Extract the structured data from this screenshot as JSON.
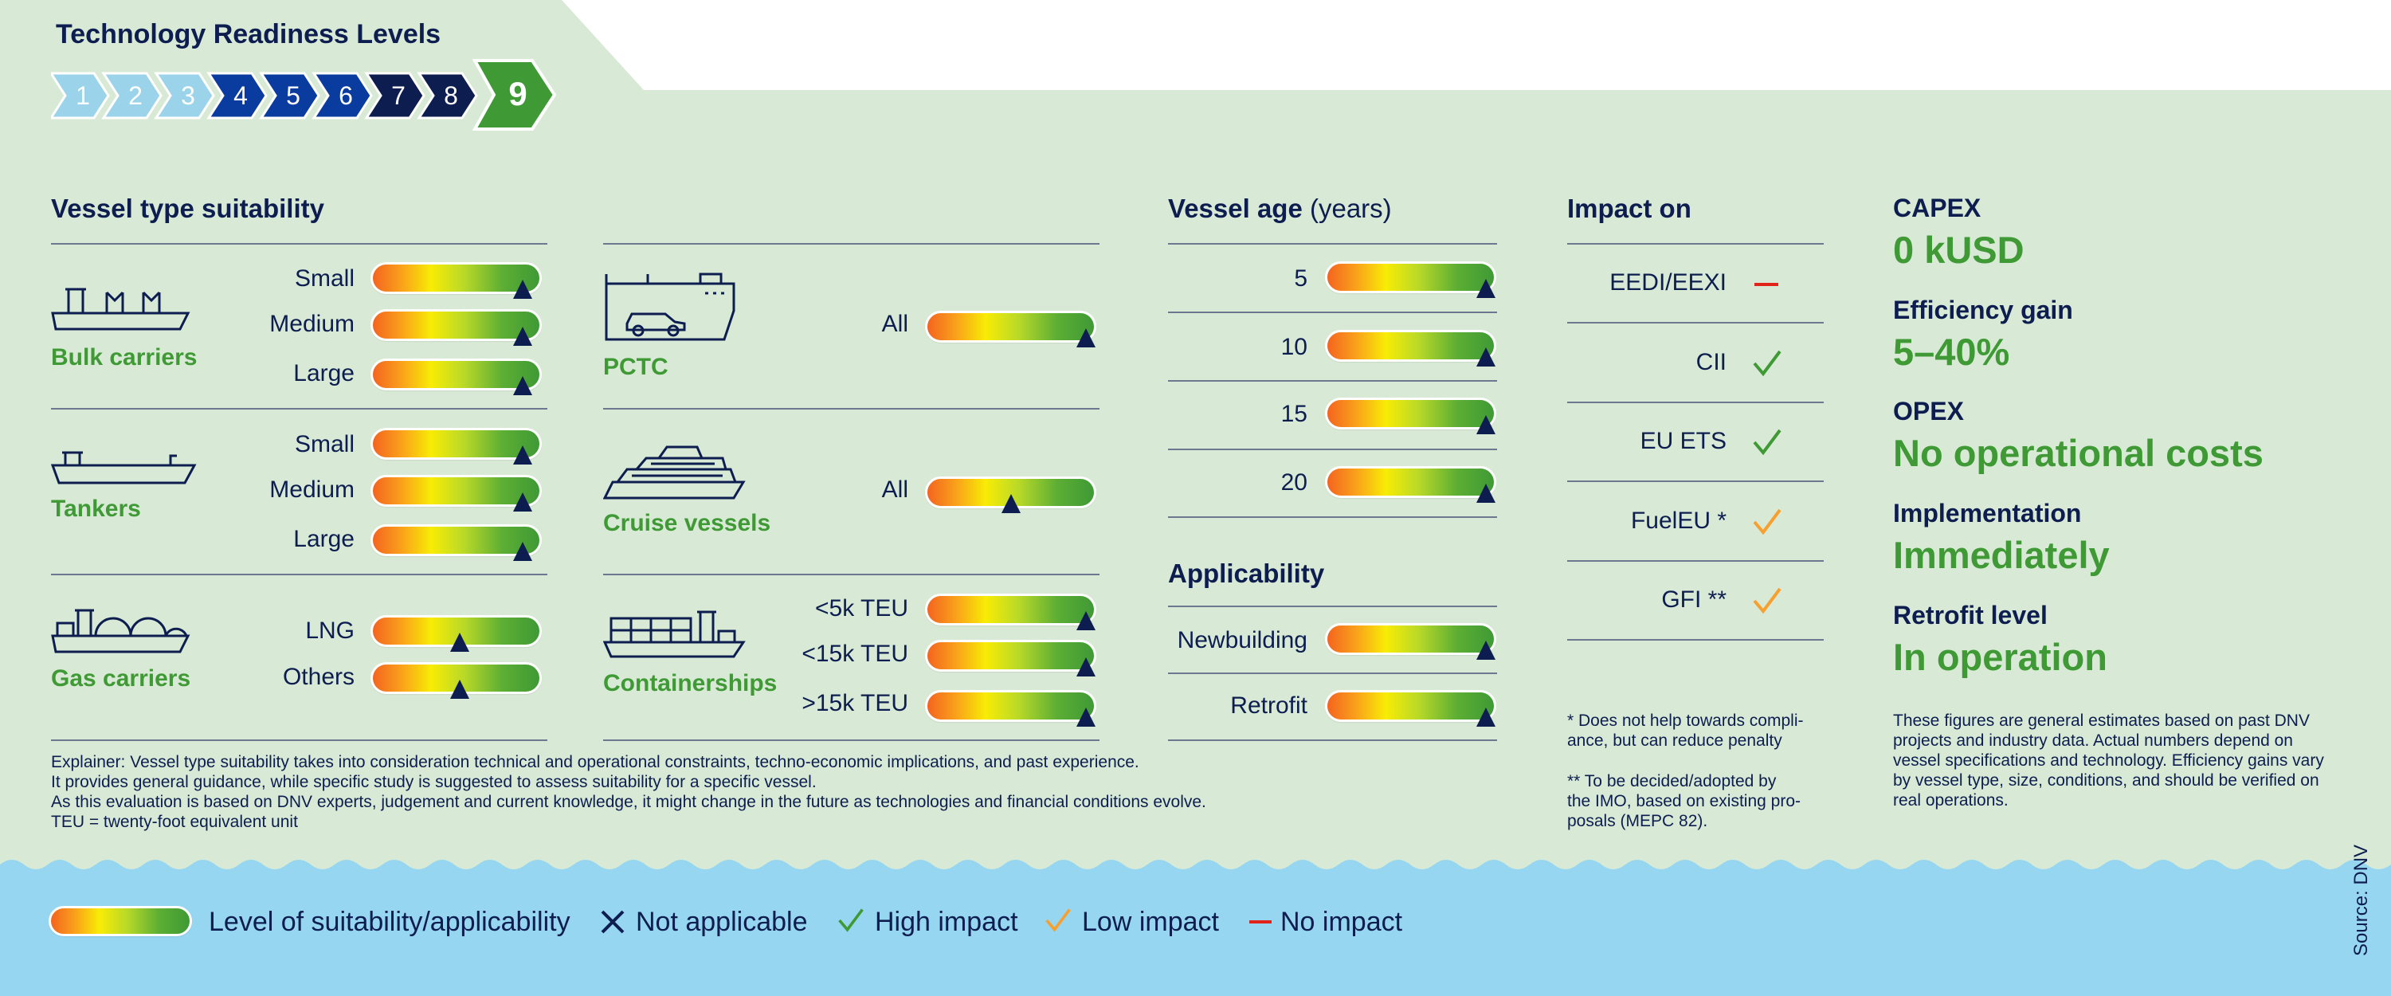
{
  "trl": {
    "title": "Technology Readiness Levels",
    "levels": [
      "1",
      "2",
      "3",
      "4",
      "5",
      "6",
      "7",
      "8",
      "9"
    ],
    "current": "9"
  },
  "colors": {
    "panel_bg": "#d8ead6",
    "navy": "#0e1d4f",
    "green": "#3f9a35",
    "light_blue": "#9bd4ea",
    "mid_blue": "#0a3ca0",
    "no_impact_red": "#e2231a",
    "low_impact_orange": "#f7a030",
    "wave_blue": "#97d6f0"
  },
  "vessel_type": {
    "title": "Vessel type suitability",
    "groups": [
      {
        "name": "Bulk carriers",
        "icon": "bulk-carrier-icon",
        "rows": [
          {
            "label": "Small",
            "level": 0.89
          },
          {
            "label": "Medium",
            "level": 0.89
          },
          {
            "label": "Large",
            "level": 0.89
          }
        ]
      },
      {
        "name": "Tankers",
        "icon": "tanker-icon",
        "rows": [
          {
            "label": "Small",
            "level": 0.89
          },
          {
            "label": "Medium",
            "level": 0.89
          },
          {
            "label": "Large",
            "level": 0.89
          }
        ]
      },
      {
        "name": "Gas carriers",
        "icon": "gas-carrier-icon",
        "rows": [
          {
            "label": "LNG",
            "level": 0.52
          },
          {
            "label": "Others",
            "level": 0.52
          }
        ]
      },
      {
        "name": "PCTC",
        "icon": "pctc-icon",
        "rows": [
          {
            "label": "All",
            "level": 0.94
          }
        ]
      },
      {
        "name": "Cruise vessels",
        "icon": "cruise-vessel-icon",
        "rows": [
          {
            "label": "All",
            "level": 0.5
          }
        ]
      },
      {
        "name": "Containerships",
        "icon": "containership-icon",
        "rows": [
          {
            "label": "<5k TEU",
            "level": 0.94
          },
          {
            "label": "<15k TEU",
            "level": 0.94
          },
          {
            "label": ">15k TEU",
            "level": 0.94
          }
        ]
      }
    ]
  },
  "vessel_age": {
    "title": "Vessel age",
    "unit": "(years)",
    "rows": [
      {
        "label": "5",
        "level": 0.94
      },
      {
        "label": "10",
        "level": 0.94
      },
      {
        "label": "15",
        "level": 0.94
      },
      {
        "label": "20",
        "level": 0.94
      }
    ]
  },
  "applicability": {
    "title": "Applicability",
    "rows": [
      {
        "label": "Newbuilding",
        "level": 0.94
      },
      {
        "label": "Retrofit",
        "level": 0.94
      }
    ]
  },
  "impact": {
    "title": "Impact on",
    "rows": [
      {
        "label": "EEDI/EEXI",
        "icon": "no-impact-dash-icon"
      },
      {
        "label": "CII",
        "icon": "high-impact-check-icon"
      },
      {
        "label": "EU ETS",
        "icon": "high-impact-check-icon"
      },
      {
        "label": "FuelEU *",
        "icon": "low-impact-check-icon"
      },
      {
        "label": "GFI **",
        "icon": "low-impact-check-icon"
      }
    ],
    "note1": "* Does not help towards compli-\nance, but can reduce penalty",
    "note2": "** To be decided/adopted by\nthe IMO, based on existing pro-\nposals (MEPC 82)."
  },
  "kpis": [
    {
      "label": "CAPEX",
      "value": "0 kUSD"
    },
    {
      "label": "Efficiency gain",
      "value": "5–40%"
    },
    {
      "label": "OPEX",
      "value": "No operational costs"
    },
    {
      "label": "Implementation",
      "value": "Immediately"
    },
    {
      "label": "Retrofit level",
      "value": "In operation"
    }
  ],
  "kpi_note": "These figures are general estimates based on past DNV\nprojects and industry data. Actual numbers depend on\nvessel specifications and technology. Efficiency gains vary\nby vessel type, size, conditions, and should be verified on\nreal operations.",
  "explainer": "Explainer: Vessel type suitability takes into consideration technical and operational constraints, techno-economic implications, and past experience.\nIt provides general guidance, while specific study is suggested to assess suitability for a specific vessel.\nAs this evaluation is based on DNV experts, judgement and current knowledge, it might change in the future as technologies and financial conditions evolve.\nTEU = twenty-foot equivalent unit",
  "legend": {
    "gradient": "Level of suitability/applicability",
    "not_applicable": "Not applicable",
    "high": "High impact",
    "low": "Low impact",
    "none": "No impact"
  },
  "source": "Source: DNV"
}
